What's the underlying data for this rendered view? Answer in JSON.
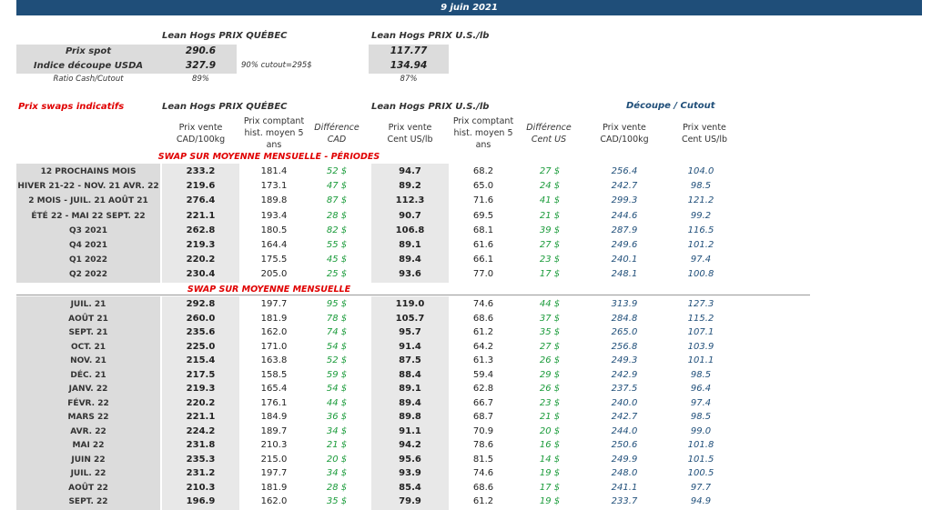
{
  "date": "9 juin 2021",
  "top": {
    "quebec_header": "Lean Hogs PRIX QUÉBEC",
    "us_header": "Lean Hogs PRIX U.S./lb",
    "rows": [
      {
        "label": "Prix spot",
        "qc": "290.6",
        "us": "117.77"
      },
      {
        "label": "Indice découpe USDA",
        "qc": "327.9",
        "note": "90% cutout=295$",
        "us": "134.94"
      },
      {
        "label": "Ratio Cash/Cutout",
        "qc": "89%",
        "us": "87%"
      }
    ]
  },
  "swaps": {
    "title": "Prix swaps indicatifs",
    "quebec_header": "Lean Hogs PRIX QUÉBEC",
    "us_header": "Lean Hogs PRIX U.S./lb",
    "cutout_header": "Découpe / Cutout",
    "columns": {
      "c1_a": "Prix vente",
      "c1_b": "CAD/100kg",
      "c2_a": "Prix comptant",
      "c2_b": "hist. moyen 5",
      "c2_c": "ans",
      "c3_a": "Différence",
      "c3_b": "CAD",
      "c4_a": "Prix vente",
      "c4_b": "Cent US/lb",
      "c5_a": "Prix comptant",
      "c5_b": "hist. moyen 5",
      "c5_c": "ans",
      "c6_a": "Différence",
      "c6_b": "Cent US",
      "c7_a": "Prix vente",
      "c7_b": "CAD/100kg",
      "c8_a": "Prix vente",
      "c8_b": "Cent US/lb"
    },
    "section1": "SWAP SUR MOYENNE MENSUELLE - PÉRIODES",
    "section2": "SWAP SUR MOYENNE MENSUELLE",
    "periods": [
      [
        "12 PROCHAINS MOIS",
        "233.2",
        "181.4",
        "52 $",
        "94.7",
        "68.2",
        "27 $",
        "256.4",
        "104.0"
      ],
      [
        "HIVER 21-22 - NOV. 21 AVR. 22",
        "219.6",
        "173.1",
        "47 $",
        "89.2",
        "65.0",
        "24 $",
        "242.7",
        "98.5"
      ],
      [
        "2 MOIS - JUIL. 21 AOÛT 21",
        "276.4",
        "189.8",
        "87 $",
        "112.3",
        "71.6",
        "41 $",
        "299.3",
        "121.2"
      ],
      [
        "ÉTÉ 22 - MAI 22 SEPT. 22",
        "221.1",
        "193.4",
        "28 $",
        "90.7",
        "69.5",
        "21 $",
        "244.6",
        "99.2"
      ],
      [
        "Q3 2021",
        "262.8",
        "180.5",
        "82 $",
        "106.8",
        "68.1",
        "39 $",
        "287.9",
        "116.5"
      ],
      [
        "Q4 2021",
        "219.3",
        "164.4",
        "55 $",
        "89.1",
        "61.6",
        "27 $",
        "249.6",
        "101.2"
      ],
      [
        "Q1 2022",
        "220.2",
        "175.5",
        "45 $",
        "89.4",
        "66.1",
        "23 $",
        "240.1",
        "97.4"
      ],
      [
        "Q2 2022",
        "230.4",
        "205.0",
        "25 $",
        "93.6",
        "77.0",
        "17 $",
        "248.1",
        "100.8"
      ]
    ],
    "months": [
      [
        "JUIL. 21",
        "292.8",
        "197.7",
        "95 $",
        "119.0",
        "74.6",
        "44 $",
        "313.9",
        "127.3"
      ],
      [
        "AOÛT 21",
        "260.0",
        "181.9",
        "78 $",
        "105.7",
        "68.6",
        "37 $",
        "284.8",
        "115.2"
      ],
      [
        "SEPT. 21",
        "235.6",
        "162.0",
        "74 $",
        "95.7",
        "61.2",
        "35 $",
        "265.0",
        "107.1"
      ],
      [
        "OCT. 21",
        "225.0",
        "171.0",
        "54 $",
        "91.4",
        "64.2",
        "27 $",
        "256.8",
        "103.9"
      ],
      [
        "NOV. 21",
        "215.4",
        "163.8",
        "52 $",
        "87.5",
        "61.3",
        "26 $",
        "249.3",
        "101.1"
      ],
      [
        "DÉC. 21",
        "217.5",
        "158.5",
        "59 $",
        "88.4",
        "59.4",
        "29 $",
        "242.9",
        "98.5"
      ],
      [
        "JANV. 22",
        "219.3",
        "165.4",
        "54 $",
        "89.1",
        "62.8",
        "26 $",
        "237.5",
        "96.4"
      ],
      [
        "FÉVR. 22",
        "220.2",
        "176.1",
        "44 $",
        "89.4",
        "66.7",
        "23 $",
        "240.0",
        "97.4"
      ],
      [
        "MARS 22",
        "221.1",
        "184.9",
        "36 $",
        "89.8",
        "68.7",
        "21 $",
        "242.7",
        "98.5"
      ],
      [
        "AVR. 22",
        "224.2",
        "189.7",
        "34 $",
        "91.1",
        "70.9",
        "20 $",
        "244.0",
        "99.0"
      ],
      [
        "MAI 22",
        "231.8",
        "210.3",
        "21 $",
        "94.2",
        "78.6",
        "16 $",
        "250.6",
        "101.8"
      ],
      [
        "JUIN 22",
        "235.3",
        "215.0",
        "20 $",
        "95.6",
        "81.5",
        "14 $",
        "249.9",
        "101.5"
      ],
      [
        "JUIL. 22",
        "231.2",
        "197.7",
        "34 $",
        "93.9",
        "74.6",
        "19 $",
        "248.0",
        "100.5"
      ],
      [
        "AOÛT 22",
        "210.3",
        "181.9",
        "28 $",
        "85.4",
        "68.6",
        "17 $",
        "241.1",
        "97.7"
      ],
      [
        "SEPT. 22",
        "196.9",
        "162.0",
        "35 $",
        "79.9",
        "61.2",
        "19 $",
        "233.7",
        "94.9"
      ]
    ]
  }
}
